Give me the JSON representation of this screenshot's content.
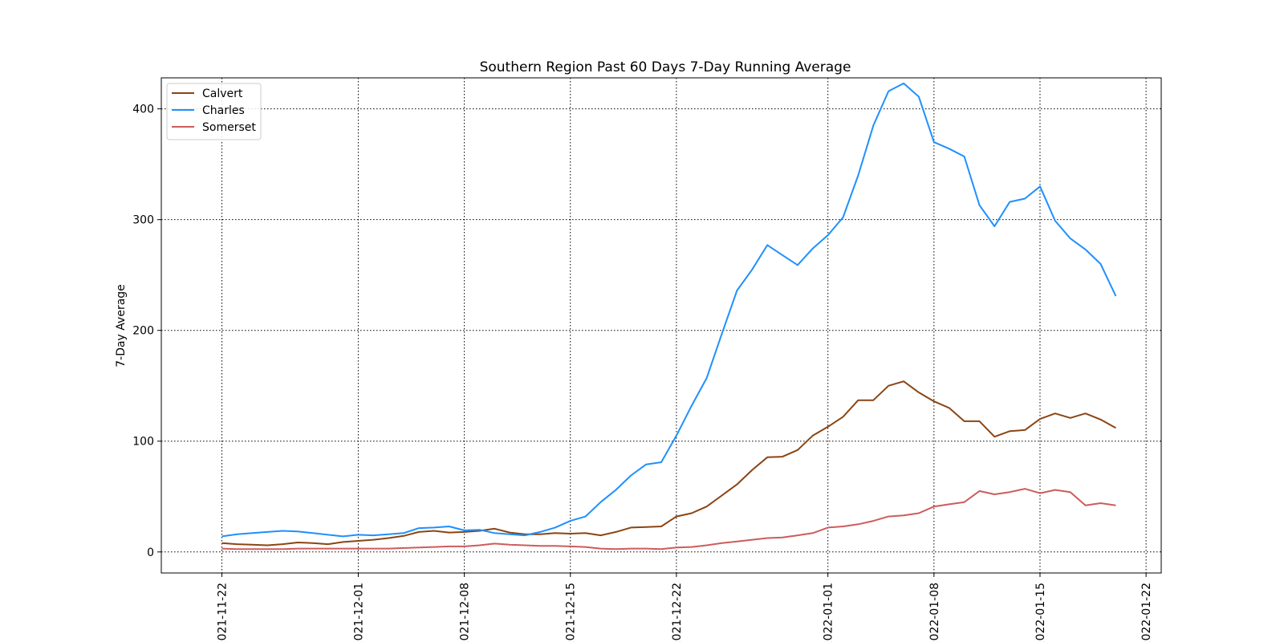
{
  "chart_data": {
    "type": "line",
    "title": "Southern Region Past 60 Days 7-Day Running Average",
    "xlabel": "",
    "ylabel": "7-Day Average",
    "start_date": "2021-11-22",
    "xlim": [
      "2021-11-18",
      "2022-01-23"
    ],
    "ylim": [
      -19,
      428
    ],
    "x_ticks": [
      "2021-11-22",
      "2021-12-01",
      "2021-12-08",
      "2021-12-15",
      "2021-12-22",
      "2022-01-01",
      "2022-01-08",
      "2022-01-15",
      "2022-01-22"
    ],
    "y_ticks": [
      0,
      100,
      200,
      300,
      400
    ],
    "grid": true,
    "legend_position": "upper left",
    "series": [
      {
        "name": "Calvert",
        "color": "#8B4513",
        "values": [
          8,
          7,
          6.5,
          6,
          7,
          8.5,
          8,
          7,
          9,
          10,
          11,
          12.5,
          14.5,
          18,
          19,
          17.5,
          18,
          19,
          21,
          17.5,
          16,
          16,
          17,
          16.5,
          17,
          15,
          18,
          22,
          22.5,
          23,
          32,
          35,
          41,
          51,
          61,
          74,
          85.5,
          86,
          92,
          105,
          113,
          122,
          137,
          137,
          150,
          154,
          144,
          136,
          130,
          118,
          118,
          104,
          109,
          110,
          120,
          125,
          121,
          125,
          119.5,
          112
        ]
      },
      {
        "name": "Charles",
        "color": "#1E90FF",
        "values": [
          14,
          16,
          17,
          18,
          19,
          18.5,
          17,
          15.5,
          14,
          15.5,
          15,
          16,
          17,
          21.5,
          22,
          23,
          19.5,
          20,
          17,
          16,
          15,
          18,
          22,
          28,
          32,
          45,
          56,
          69,
          79,
          81,
          105,
          132,
          157,
          197,
          236,
          255,
          277,
          268,
          259,
          274,
          286,
          302,
          340,
          385,
          416,
          423,
          411,
          370,
          364,
          357,
          313,
          294,
          316,
          319,
          330,
          299,
          283,
          273,
          260,
          231
        ]
      },
      {
        "name": "Somerset",
        "color": "#CD5C5C",
        "values": [
          3,
          2.5,
          2.5,
          2.5,
          2.5,
          3,
          3,
          3,
          3,
          3,
          3,
          3,
          3.5,
          4,
          4.5,
          5,
          5,
          6,
          7.5,
          6.5,
          6,
          5.5,
          5.5,
          5,
          4.5,
          3,
          2.5,
          3,
          3,
          2.5,
          4,
          4.5,
          6,
          8,
          9.5,
          11,
          12.5,
          13,
          15,
          17,
          22,
          23,
          25,
          28,
          32,
          33,
          35,
          41,
          43,
          45,
          55,
          52,
          54,
          57,
          53,
          56,
          54,
          42,
          44,
          42
        ]
      }
    ]
  }
}
